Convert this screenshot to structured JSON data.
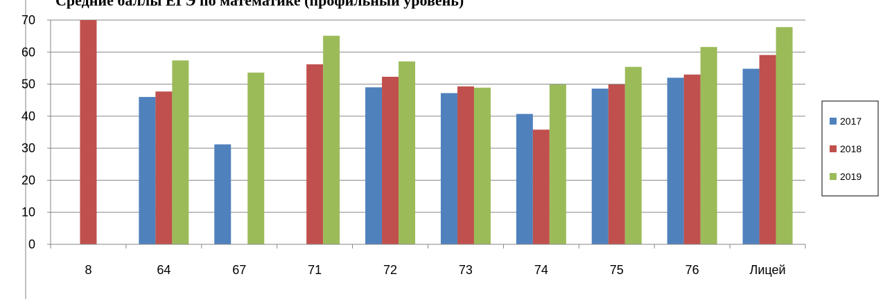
{
  "chart_data": {
    "type": "bar",
    "title": "Средние баллы ЕГЭ по математике (профильный уровень)",
    "categories": [
      "8",
      "64",
      "67",
      "71",
      "72",
      "73",
      "74",
      "75",
      "76",
      "Лицей"
    ],
    "series": [
      {
        "name": "2017",
        "color": "#4F81BD",
        "values": [
          null,
          46,
          31.2,
          null,
          49,
          47.2,
          40.7,
          48.6,
          52,
          54.8
        ]
      },
      {
        "name": "2018",
        "color": "#C0504D",
        "values": [
          70,
          47.7,
          null,
          56.2,
          52.3,
          49.3,
          35.8,
          49.9,
          53,
          59.1
        ]
      },
      {
        "name": "2019",
        "color": "#9BBB59",
        "values": [
          null,
          57.4,
          53.6,
          65.1,
          57.1,
          48.9,
          49.9,
          55.4,
          61.6,
          67.8
        ]
      }
    ],
    "ylim": [
      0,
      70
    ],
    "yticks": [
      "0",
      "10",
      "20",
      "30",
      "40",
      "50",
      "60",
      "70"
    ],
    "grid": true,
    "legend": "right"
  }
}
